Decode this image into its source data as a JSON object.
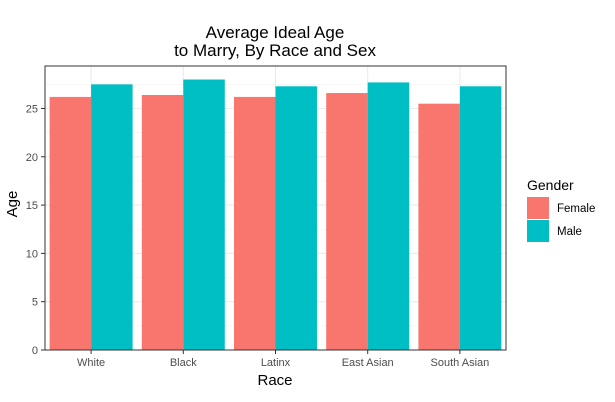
{
  "chart_data": {
    "type": "bar",
    "title": [
      "Average Ideal Age",
      "to Marry, By Race and Sex"
    ],
    "xlabel": "Race",
    "ylabel": "Age",
    "categories": [
      "White",
      "Black",
      "Latinx",
      "East Asian",
      "South Asian"
    ],
    "series": [
      {
        "name": "Female",
        "color": "#F8766D",
        "values": [
          26.2,
          26.4,
          26.2,
          26.6,
          25.5
        ]
      },
      {
        "name": "Male",
        "color": "#00BFC4",
        "values": [
          27.5,
          28.0,
          27.3,
          27.7,
          27.3
        ]
      }
    ],
    "ylim": [
      0,
      29.4
    ],
    "yticks": [
      0,
      5,
      10,
      15,
      20,
      25
    ],
    "legend": {
      "title": "Gender",
      "position": "right"
    },
    "grid": true
  }
}
